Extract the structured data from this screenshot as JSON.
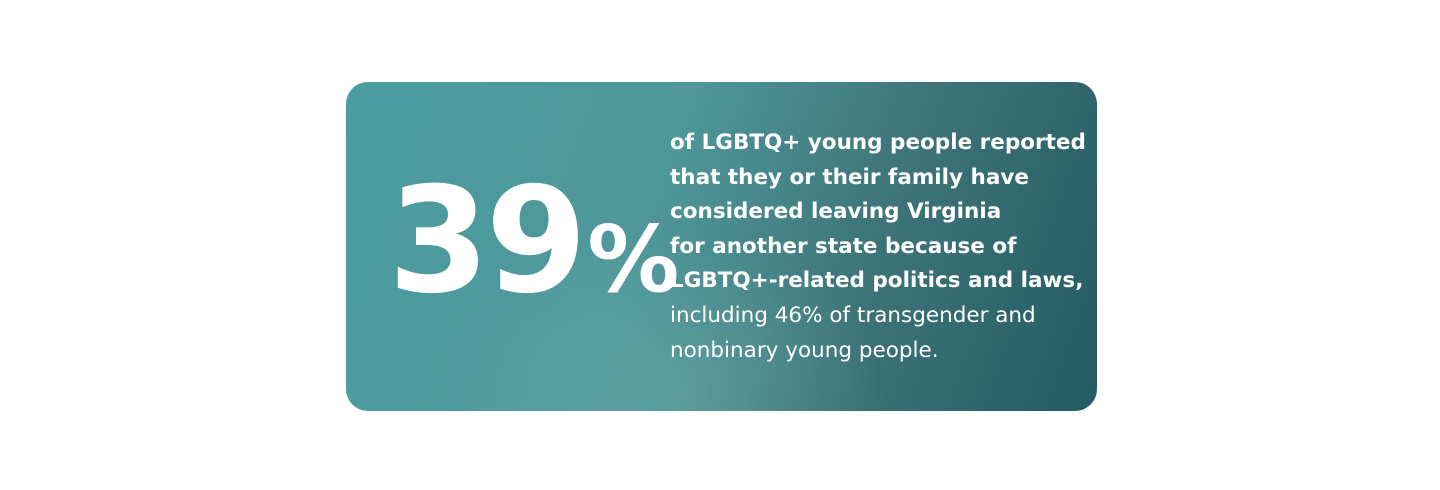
{
  "card": {
    "stat_number": "39",
    "stat_unit": "%",
    "description_bold": [
      "of LGBTQ+ young people reported",
      "that they or their family have",
      "considered leaving Virginia",
      "for another state because of",
      "LGBTQ+-related politics and laws,"
    ],
    "description_regular": [
      "including 46% of transgender and",
      "nonbinary young people."
    ]
  }
}
